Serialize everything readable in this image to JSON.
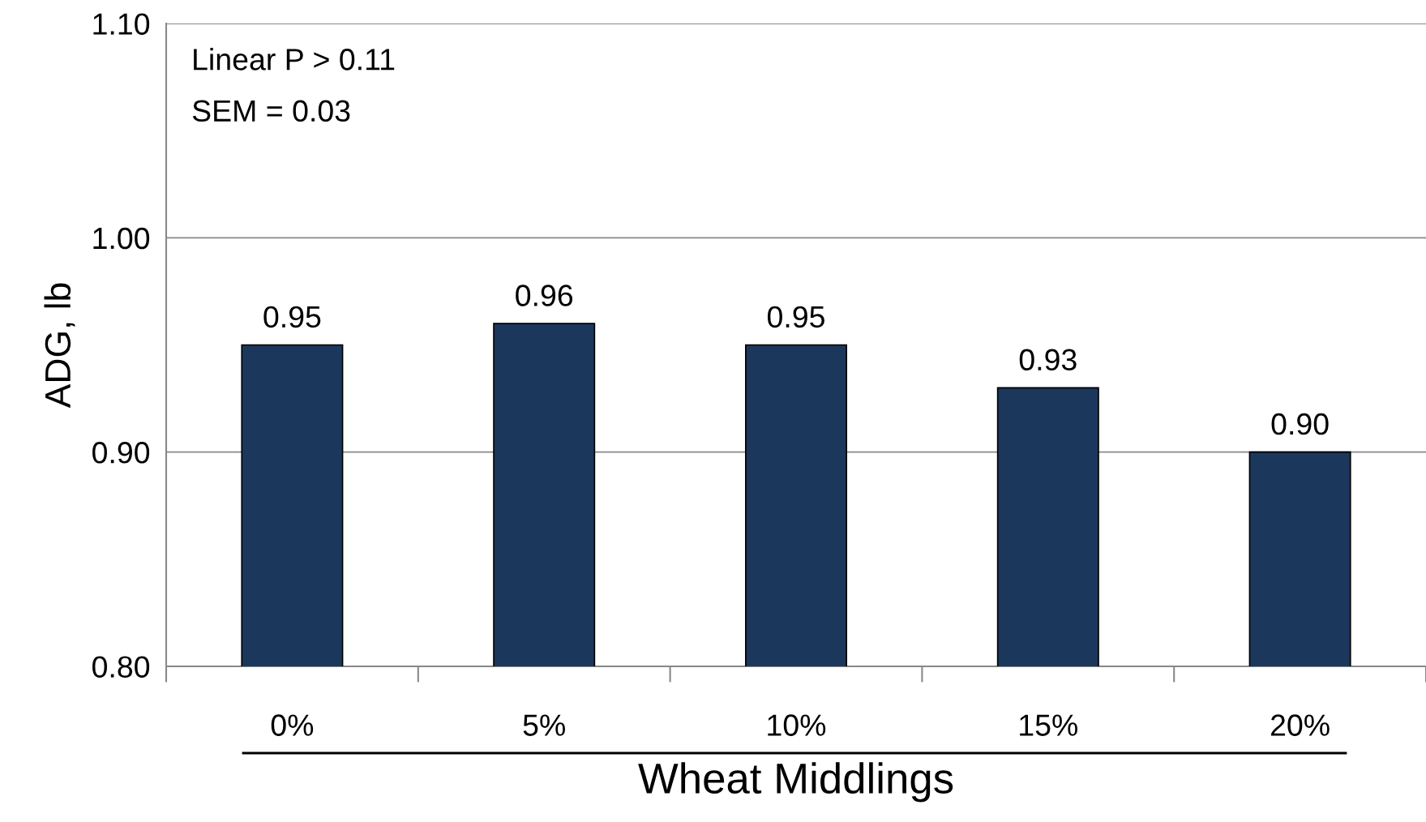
{
  "chart_data": {
    "type": "bar",
    "xlabel": "Wheat Middlings",
    "ylabel": "ADG, lb",
    "categories": [
      "0%",
      "5%",
      "10%",
      "15%",
      "20%"
    ],
    "values": [
      0.95,
      0.96,
      0.95,
      0.93,
      0.9
    ],
    "color": "#1b375c",
    "ylim": [
      0.8,
      1.1
    ],
    "yticks": [
      {
        "value": 0.8,
        "label": "0.80"
      },
      {
        "value": 0.9,
        "label": "0.90"
      },
      {
        "value": 1.0,
        "label": "1.00"
      },
      {
        "value": 1.1,
        "label": "1.10"
      }
    ],
    "grid": "y",
    "value_labels": [
      "0.95",
      "0.96",
      "0.95",
      "0.93",
      "0.90"
    ],
    "annotations": [
      "Linear P > 0.11",
      "SEM = 0.03"
    ]
  }
}
